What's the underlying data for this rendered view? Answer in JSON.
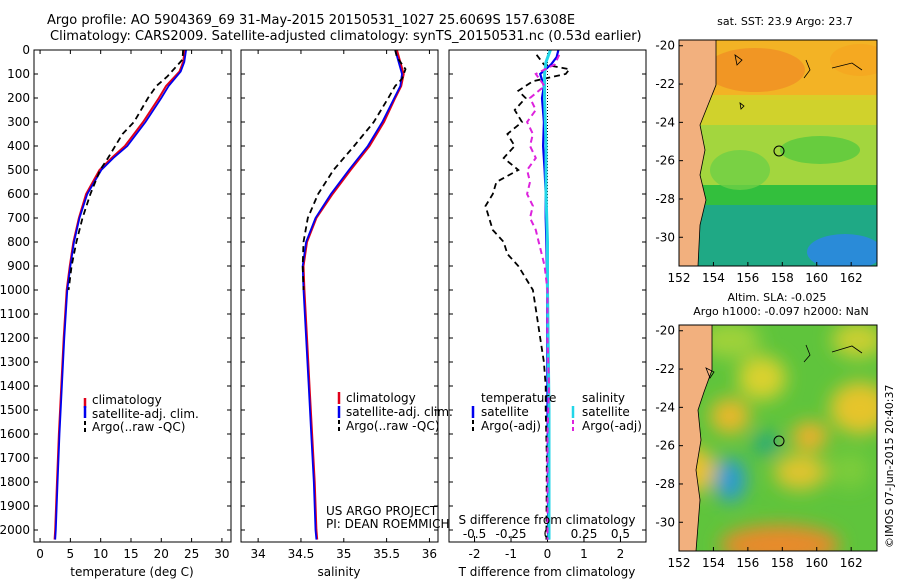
{
  "header": {
    "line1": "Argo profile: AO 5904369_69 31-May-2015 20150531_1027 25.6069S 157.6308E",
    "line2": "Climatology: CARS2009. Satellite-adjusted climatology: synTS_20150531.nc (0.53d earlier)"
  },
  "colors": {
    "climatology": "#e0001a",
    "satellite": "#0000ee",
    "argo": "#000000",
    "salinity_satellite": "#22d6e8",
    "salinity_argo": "#dd22dd",
    "land": "#f2b07e"
  },
  "chart_data": [
    {
      "type": "line",
      "name": "temperature-profile",
      "xlabel": "temperature (deg C)",
      "ylabel": "",
      "xlim": [
        -1,
        31.5
      ],
      "ylim": [
        2050,
        0
      ],
      "xticks": [
        "0",
        "5",
        "10",
        "15",
        "20",
        "25",
        "30"
      ],
      "xtick_values": [
        0,
        5,
        10,
        15,
        20,
        25,
        30
      ],
      "yticks": [
        "0",
        "100",
        "200",
        "300",
        "400",
        "500",
        "600",
        "700",
        "800",
        "900",
        "1000",
        "1100",
        "1200",
        "1300",
        "1400",
        "1500",
        "1600",
        "1700",
        "1800",
        "1900",
        "2000"
      ],
      "ytick_values": [
        0,
        100,
        200,
        300,
        400,
        500,
        600,
        700,
        800,
        900,
        1000,
        1100,
        1200,
        1300,
        1400,
        1500,
        1600,
        1700,
        1800,
        1900,
        2000
      ],
      "legend": [
        "climatology",
        "satellite-adj. clim.",
        "Argo(..raw -QC)"
      ],
      "series": [
        {
          "name": "climatology",
          "depth": [
            0,
            50,
            90,
            150,
            200,
            300,
            400,
            450,
            500,
            600,
            700,
            800,
            900,
            1000,
            1200,
            1400,
            1600,
            1800,
            2000,
            2040
          ],
          "values": [
            23.9,
            23.6,
            23.0,
            20.8,
            19.6,
            17.0,
            14.0,
            11.8,
            9.8,
            7.6,
            6.4,
            5.5,
            4.9,
            4.4,
            3.9,
            3.5,
            3.1,
            2.8,
            2.5,
            2.4
          ]
        },
        {
          "name": "satellite-adj. clim.",
          "depth": [
            0,
            50,
            90,
            150,
            200,
            300,
            400,
            450,
            500,
            600,
            700,
            800,
            900,
            1000,
            1200,
            1400,
            1600,
            1800,
            2000,
            2040
          ],
          "values": [
            24.1,
            23.8,
            23.2,
            21.2,
            20.0,
            17.4,
            14.4,
            12.1,
            10.1,
            7.8,
            6.5,
            5.6,
            5.0,
            4.5,
            4.0,
            3.6,
            3.2,
            2.9,
            2.6,
            2.5
          ]
        },
        {
          "name": "Argo(..raw -QC)",
          "depth": [
            0,
            40,
            110,
            150,
            200,
            300,
            350,
            400,
            450,
            500,
            600,
            700,
            800,
            900,
            1000
          ],
          "values": [
            23.6,
            23.5,
            21.0,
            19.2,
            17.8,
            15.5,
            13.6,
            12.4,
            11.2,
            9.9,
            8.3,
            7.0,
            6.0,
            5.2,
            4.7
          ]
        }
      ]
    },
    {
      "type": "line",
      "name": "salinity-profile",
      "xlabel": "salinity",
      "xlim": [
        33.8,
        36.1
      ],
      "ylim": [
        2050,
        0
      ],
      "xticks": [
        "34",
        "34.5",
        "35",
        "35.5",
        "36"
      ],
      "xtick_values": [
        34,
        34.5,
        35,
        35.5,
        36
      ],
      "legend": [
        "climatology",
        "satellite-adj. clim.",
        "Argo(..raw -QC)"
      ],
      "annotation": [
        "US ARGO PROJECT",
        "PI: DEAN ROEMMICH"
      ],
      "series": [
        {
          "name": "climatology",
          "depth": [
            0,
            50,
            100,
            150,
            200,
            300,
            400,
            500,
            600,
            700,
            800,
            900,
            1000,
            1200,
            1400,
            1600,
            1800,
            2000,
            2040
          ],
          "values": [
            35.62,
            35.66,
            35.7,
            35.67,
            35.6,
            35.47,
            35.3,
            35.08,
            34.87,
            34.68,
            34.57,
            34.53,
            34.54,
            34.57,
            34.6,
            34.63,
            34.66,
            34.68,
            34.69
          ]
        },
        {
          "name": "satellite-adj. clim.",
          "depth": [
            0,
            50,
            100,
            150,
            200,
            300,
            400,
            500,
            600,
            700,
            800,
            900,
            1000,
            1200,
            1400,
            1600,
            1800,
            2000,
            2040
          ],
          "values": [
            35.6,
            35.64,
            35.68,
            35.66,
            35.59,
            35.45,
            35.28,
            35.06,
            34.85,
            34.67,
            34.56,
            34.52,
            34.53,
            34.56,
            34.59,
            34.62,
            34.65,
            34.67,
            34.68
          ]
        },
        {
          "name": "Argo(..raw -QC)",
          "depth": [
            0,
            30,
            80,
            120,
            150,
            200,
            300,
            400,
            500,
            600,
            700,
            800,
            900,
            1000
          ],
          "values": [
            35.6,
            35.62,
            35.72,
            35.68,
            35.6,
            35.52,
            35.35,
            35.12,
            34.88,
            34.7,
            34.58,
            34.53,
            34.52,
            34.53
          ]
        }
      ]
    },
    {
      "type": "line",
      "name": "difference-profile",
      "xlabel": "T difference from climatology",
      "xlabel_top": "S difference from climatology",
      "xlim": [
        -2.7,
        2.7
      ],
      "ylim": [
        2050,
        0
      ],
      "xticks": [
        "-2",
        "-1",
        "0",
        "1",
        "2"
      ],
      "xtick_values": [
        -2,
        -1,
        0,
        1,
        2
      ],
      "sticks": [
        "-0.5",
        "-0.25",
        "0",
        "0.25",
        "0.5"
      ],
      "stick_values": [
        -0.5,
        -0.25,
        0,
        0.25,
        0.5
      ],
      "legend_temperature": {
        "title": "temperature",
        "items": [
          "satellite",
          "Argo(-adj)"
        ]
      },
      "legend_salinity": {
        "title": "salinity",
        "items": [
          "satellite",
          "Argo(-adj)"
        ]
      },
      "series": [
        {
          "name": "temperature satellite",
          "depth": [
            0,
            30,
            60,
            100,
            150,
            200,
            300,
            400,
            500,
            600,
            700,
            800,
            900,
            1000,
            1500,
            2000,
            2040
          ],
          "values": [
            0.3,
            0.25,
            0.1,
            -0.2,
            -0.1,
            -0.15,
            -0.1,
            -0.12,
            -0.08,
            -0.05,
            -0.05,
            -0.03,
            -0.02,
            -0.01,
            0,
            0.02,
            0.02
          ]
        },
        {
          "name": "temperature Argo(-adj)",
          "depth": [
            20,
            60,
            80,
            100,
            130,
            170,
            200,
            250,
            300,
            350,
            400,
            450,
            500,
            550,
            600,
            650,
            700,
            750,
            800,
            850,
            900,
            950,
            1000,
            1100,
            1200,
            1300,
            1400,
            1500,
            1700,
            2040
          ],
          "values": [
            -0.3,
            -0.1,
            0.6,
            0.5,
            -0.4,
            -0.8,
            -0.6,
            -0.9,
            -0.7,
            -1.1,
            -0.9,
            -1.2,
            -0.8,
            -1.4,
            -1.5,
            -1.7,
            -1.6,
            -1.5,
            -1.2,
            -1.1,
            -0.8,
            -0.6,
            -0.4,
            -0.3,
            -0.2,
            -0.1,
            -0.05,
            -0.05,
            -0.02,
            -0.03
          ]
        },
        {
          "name": "salinity satellite",
          "depth": [
            0,
            50,
            100,
            200,
            400,
            600,
            800,
            1000,
            1500,
            2040
          ],
          "values": [
            0.02,
            -0.01,
            -0.02,
            -0.02,
            -0.01,
            -0.01,
            0.0,
            0.0,
            0.01,
            0.01
          ]
        },
        {
          "name": "salinity Argo(-adj)",
          "depth": [
            20,
            60,
            100,
            150,
            200,
            250,
            300,
            350,
            400,
            450,
            500,
            550,
            600,
            650,
            700,
            750,
            800,
            850,
            900,
            950,
            1000,
            1100,
            1200,
            1400,
            1600,
            2040
          ],
          "values": [
            0.08,
            0.05,
            -0.08,
            -0.02,
            -0.12,
            -0.08,
            -0.14,
            -0.1,
            -0.12,
            -0.08,
            -0.14,
            -0.12,
            -0.14,
            -0.1,
            -0.12,
            -0.08,
            -0.06,
            -0.04,
            -0.02,
            -0.01,
            0.0,
            0.0,
            0.0,
            0.01,
            0.0,
            0.0
          ]
        }
      ]
    },
    {
      "type": "heatmap",
      "name": "sst-map",
      "title": "sat. SST: 23.9 Argo: 23.7",
      "xticks": [
        "152",
        "154",
        "156",
        "158",
        "160",
        "162"
      ],
      "xtick_values": [
        152,
        154,
        156,
        158,
        160,
        162
      ],
      "yticks": [
        "-20",
        "-22",
        "-24",
        "-26",
        "-28",
        "-30"
      ],
      "ytick_values": [
        -20,
        -22,
        -24,
        -26,
        -28,
        -30
      ],
      "xlim": [
        152,
        163.5
      ],
      "ylim": [
        -31.5,
        -19.7
      ],
      "argo_position": {
        "lon": 157.63,
        "lat": -25.61
      }
    },
    {
      "type": "heatmap",
      "name": "sla-map",
      "title": "Altim. SLA: -0.025",
      "subtitle": "Argo h1000: -0.097 h2000: NaN",
      "xticks": [
        "152",
        "154",
        "156",
        "158",
        "160",
        "162"
      ],
      "xtick_values": [
        152,
        154,
        156,
        158,
        160,
        162
      ],
      "yticks": [
        "-20",
        "-22",
        "-24",
        "-26",
        "-28",
        "-30"
      ],
      "ytick_values": [
        -20,
        -22,
        -24,
        -26,
        -28,
        -30
      ],
      "xlim": [
        152,
        163.5
      ],
      "ylim": [
        -31.5,
        -19.7
      ],
      "argo_position": {
        "lon": 157.63,
        "lat": -25.61
      }
    }
  ],
  "credit": "©IMOS 07-Jun-2015 20:40:37"
}
